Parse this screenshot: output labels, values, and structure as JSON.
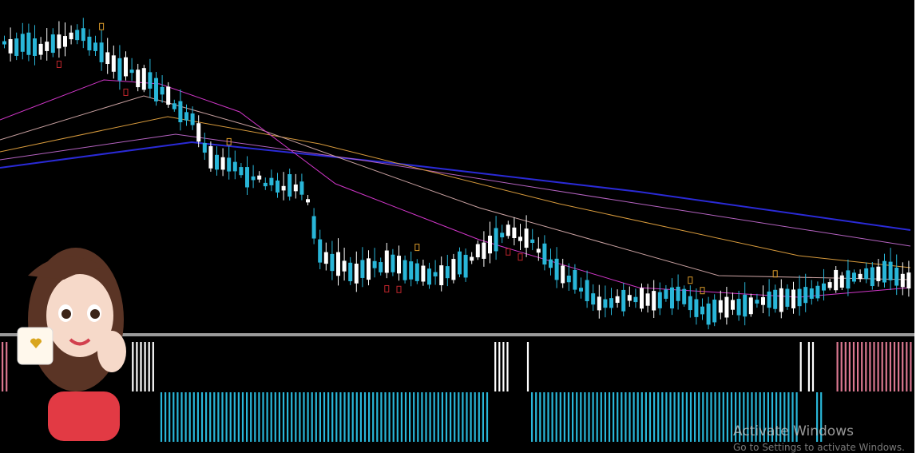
{
  "watermark": {
    "title": "Activate Windows",
    "subtitle": "Go to Settings to activate Windows."
  }
}
